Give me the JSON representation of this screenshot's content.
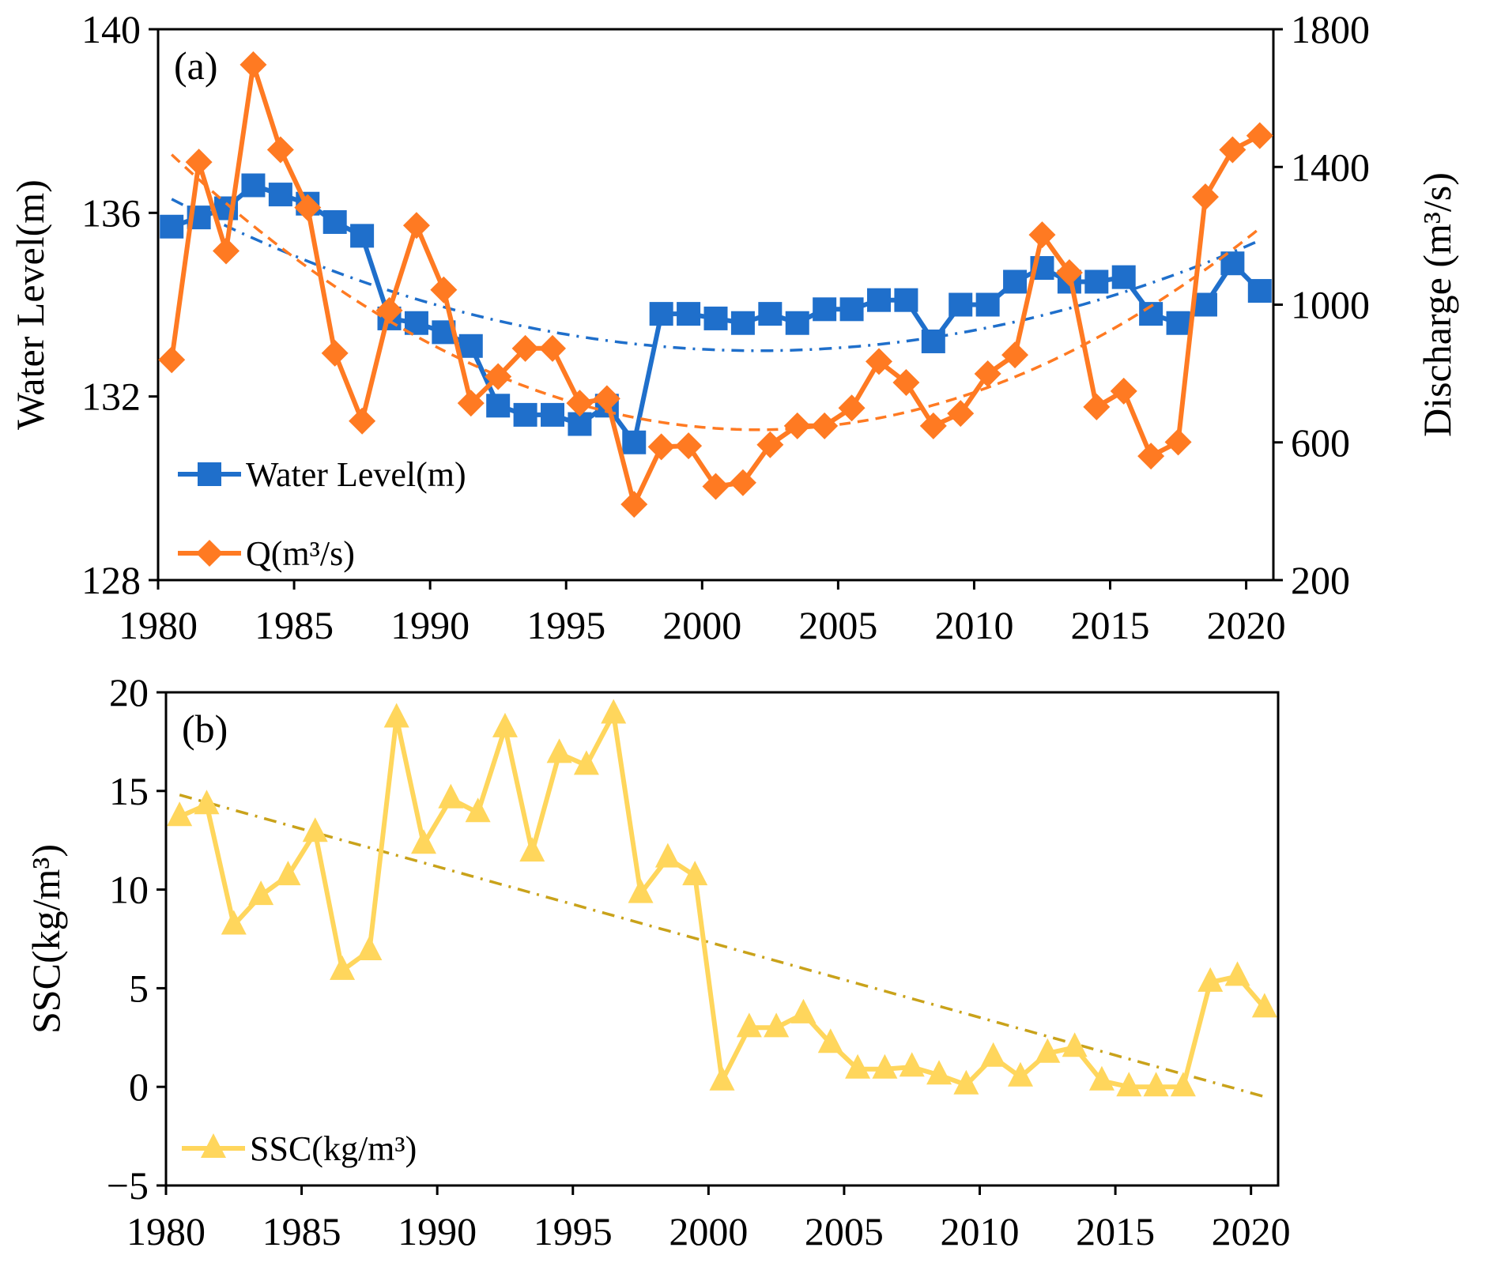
{
  "chart_data": [
    {
      "id": "a",
      "type": "line",
      "panel_label": "(a)",
      "xlabel": "",
      "xlim": [
        1980,
        2021
      ],
      "xticks": [
        1980,
        1985,
        1990,
        1995,
        2000,
        2005,
        2010,
        2015,
        2020
      ],
      "ylabel": "Water Level(m)",
      "ylim": [
        128,
        140
      ],
      "yticks": [
        128,
        132,
        136,
        140
      ],
      "y2label": "Discharge (m³/s)",
      "y2lim": [
        200,
        1800
      ],
      "y2ticks": [
        200,
        600,
        1000,
        1400,
        1800
      ],
      "grid": false,
      "legend_position": "bottom-left",
      "x": [
        1980,
        1981,
        1982,
        1983,
        1984,
        1985,
        1986,
        1987,
        1988,
        1989,
        1990,
        1991,
        1992,
        1993,
        1994,
        1995,
        1996,
        1997,
        1998,
        1999,
        2000,
        2001,
        2002,
        2003,
        2004,
        2005,
        2006,
        2007,
        2008,
        2009,
        2010,
        2011,
        2012,
        2013,
        2014,
        2015,
        2016,
        2017,
        2018,
        2019,
        2020
      ],
      "series": [
        {
          "name": "Water Level(m)",
          "axis": "left",
          "color": "#1f6fcb",
          "marker": "square",
          "values": [
            135.7,
            135.9,
            136.1,
            136.6,
            136.4,
            136.2,
            135.8,
            135.5,
            133.7,
            133.6,
            133.4,
            133.1,
            131.8,
            131.6,
            131.6,
            131.4,
            131.8,
            131.0,
            133.8,
            133.8,
            133.7,
            133.6,
            133.8,
            133.6,
            133.9,
            133.9,
            134.1,
            134.1,
            133.2,
            134.0,
            134.0,
            134.5,
            134.8,
            134.5,
            134.5,
            134.6,
            133.8,
            133.6,
            134.0,
            134.9,
            134.3
          ],
          "trend": {
            "type": "quadratic",
            "style": "dash-dot",
            "anchors": [
              [
                1980,
                136.3
              ],
              [
                2001,
                133.0
              ],
              [
                2020,
                135.4
              ]
            ]
          }
        },
        {
          "name": "Q(m³/s)",
          "axis": "right",
          "color": "#ff7a22",
          "marker": "diamond",
          "values": [
            840,
            1414,
            1156,
            1697,
            1450,
            1282,
            859,
            662,
            983,
            1230,
            1043,
            714,
            791,
            873,
            873,
            714,
            727,
            420,
            587,
            590,
            472,
            483,
            593,
            648,
            648,
            700,
            835,
            774,
            648,
            684,
            799,
            854,
            1203,
            1093,
            703,
            749,
            560,
            601,
            1313,
            1450,
            1491
          ],
          "trend": {
            "type": "quadratic",
            "style": "dashed",
            "anchors": [
              [
                1980,
                1436
              ],
              [
                2002,
                637
              ],
              [
                2020,
                1222
              ]
            ]
          }
        }
      ]
    },
    {
      "id": "b",
      "type": "line",
      "panel_label": "(b)",
      "xlabel": "",
      "xlim": [
        1980,
        2021
      ],
      "xticks": [
        1980,
        1985,
        1990,
        1995,
        2000,
        2005,
        2010,
        2015,
        2020
      ],
      "ylabel": "SSC(kg/m³)",
      "ylim": [
        -5,
        20
      ],
      "yticks": [
        -5,
        0,
        5,
        10,
        15,
        20
      ],
      "ytick_labels": [
        "−5",
        "0",
        "5",
        "10",
        "15",
        "20"
      ],
      "grid": false,
      "legend_position": "bottom-left",
      "x": [
        1980,
        1981,
        1982,
        1983,
        1984,
        1985,
        1986,
        1987,
        1988,
        1989,
        1990,
        1991,
        1992,
        1993,
        1994,
        1995,
        1996,
        1997,
        1998,
        1999,
        2000,
        2001,
        2002,
        2003,
        2004,
        2005,
        2006,
        2007,
        2008,
        2009,
        2010,
        2011,
        2012,
        2013,
        2014,
        2015,
        2016,
        2017,
        2018,
        2019,
        2020
      ],
      "series": [
        {
          "name": "SSC(kg/m³)",
          "axis": "left",
          "color": "#ffd65c",
          "marker": "triangle",
          "values": [
            13.7,
            14.3,
            8.2,
            9.7,
            10.7,
            12.9,
            5.9,
            6.9,
            18.7,
            12.3,
            14.6,
            13.9,
            18.2,
            11.9,
            16.9,
            16.3,
            18.9,
            9.8,
            11.6,
            10.7,
            0.3,
            3.0,
            3.0,
            3.7,
            2.2,
            0.9,
            0.9,
            1.0,
            0.6,
            0.1,
            1.5,
            0.5,
            1.7,
            2.0,
            0.3,
            0.0,
            0.0,
            0.0,
            5.3,
            5.6,
            4.0
          ],
          "trend": {
            "type": "linear",
            "style": "dash-dot",
            "color": "#c9a21a",
            "anchors": [
              [
                1980,
                14.8
              ],
              [
                2020,
                -0.5
              ]
            ]
          }
        }
      ]
    }
  ]
}
